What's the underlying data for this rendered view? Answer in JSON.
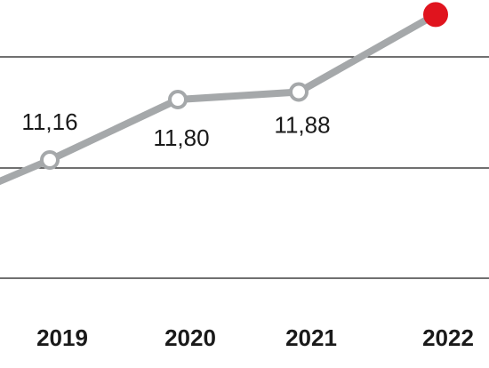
{
  "chart_data": {
    "type": "line",
    "categories": [
      "2019",
      "2020",
      "2021",
      "2022"
    ],
    "series": [
      {
        "values": [
          11.16,
          11.8,
          11.88,
          12.7
        ],
        "labels": [
          "11,16",
          "11,80",
          "11,88",
          ""
        ]
      }
    ],
    "highlight_index": 3,
    "grid": true,
    "colors": {
      "line": "#a5a8aa",
      "point_fill": "#ffffff",
      "highlight": "#e0141e",
      "grid": "#1a1a1a",
      "text": "#1a1a1a"
    }
  }
}
